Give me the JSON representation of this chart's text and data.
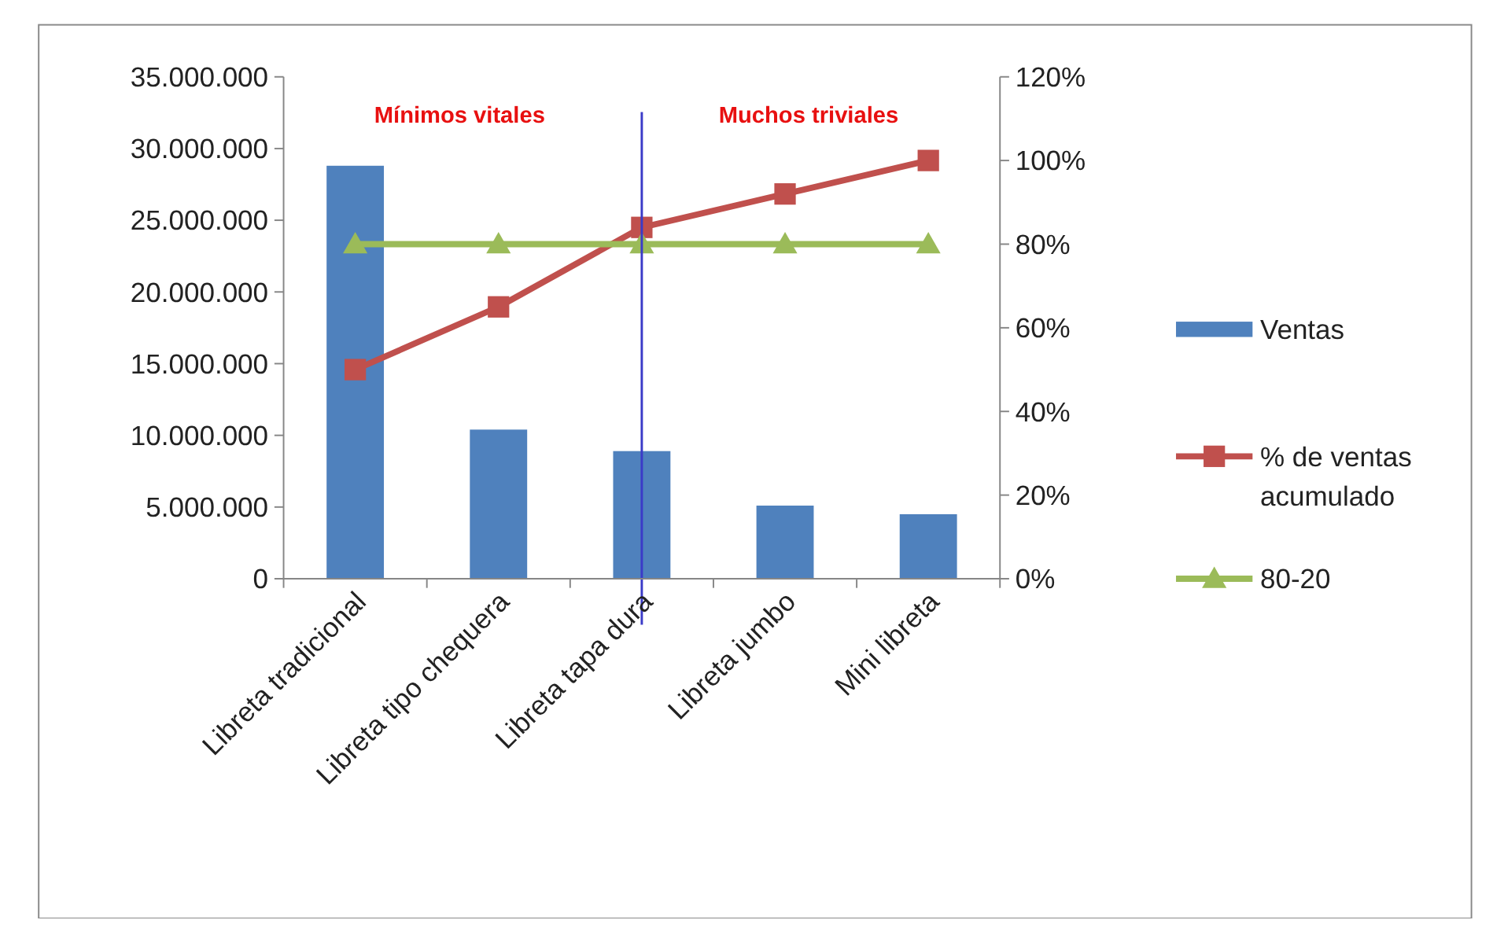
{
  "chart_data": {
    "type": "bar",
    "categories": [
      "Libreta tradicional",
      "Libreta tipo chequera",
      "Libreta tapa dura",
      "Libreta jumbo",
      "Mini libreta"
    ],
    "series": [
      {
        "name": "Ventas",
        "color": "#4f81bd",
        "values": [
          28800000,
          10400000,
          8900000,
          5100000,
          4500000
        ]
      },
      {
        "name": "% de ventas acumulado",
        "type": "line",
        "axis": "y2",
        "color": "#c0504d",
        "marker": "square",
        "values": [
          50,
          65,
          84,
          92,
          100
        ]
      },
      {
        "name": "80-20",
        "type": "line",
        "axis": "y2",
        "color": "#9bbb59",
        "marker": "triangle",
        "values": [
          80,
          80,
          80,
          80,
          80
        ]
      }
    ],
    "ylim": [
      0,
      35000000
    ],
    "yticks": [
      {
        "value": 0,
        "label": "0"
      },
      {
        "value": 5000000,
        "label": "5.000.000"
      },
      {
        "value": 10000000,
        "label": "10.000.000"
      },
      {
        "value": 15000000,
        "label": "15.000.000"
      },
      {
        "value": 20000000,
        "label": "20.000.000"
      },
      {
        "value": 25000000,
        "label": "25.000.000"
      },
      {
        "value": 30000000,
        "label": "30.000.000"
      },
      {
        "value": 35000000,
        "label": "35.000.000"
      }
    ],
    "y2lim": [
      0,
      120
    ],
    "y2ticks": [
      {
        "value": 0,
        "label": "0%"
      },
      {
        "value": 20,
        "label": "20%"
      },
      {
        "value": 40,
        "label": "40%"
      },
      {
        "value": 60,
        "label": "60%"
      },
      {
        "value": 80,
        "label": "80%"
      },
      {
        "value": 100,
        "label": "100%"
      },
      {
        "value": 120,
        "label": "120%"
      }
    ],
    "ref_lines": [
      {
        "axis": "x",
        "value": "Libreta tapa dura",
        "color": "#3a3ac8"
      }
    ],
    "annotations": [
      "Mínimos vitales",
      "Muchos triviales"
    ],
    "legend": "right",
    "grid": false
  }
}
